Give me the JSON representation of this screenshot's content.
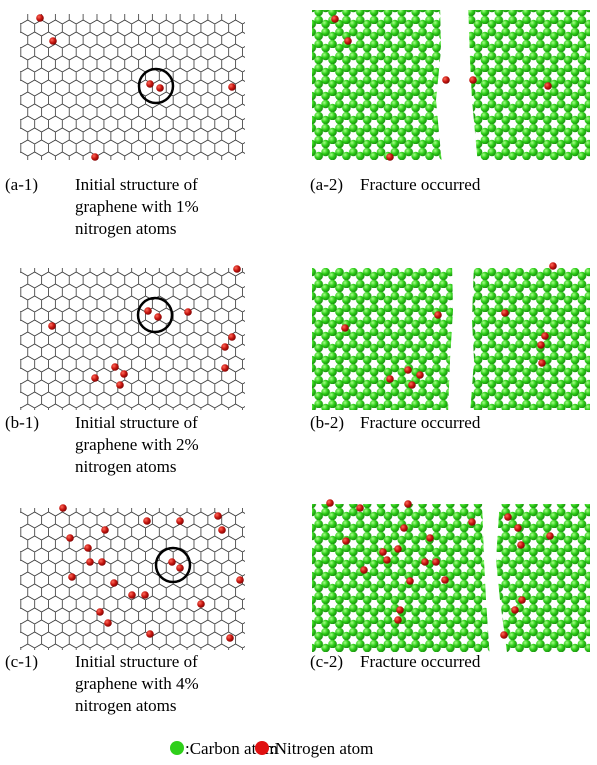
{
  "panels": [
    {
      "label": "(a-1)",
      "caption": [
        "Initial structure of",
        "graphene with 1%",
        "nitrogen atoms"
      ]
    },
    {
      "label": "(a-2)",
      "caption": [
        "Fracture occurred"
      ]
    },
    {
      "label": "(b-1)",
      "caption": [
        "Initial structure of",
        "graphene with 2%",
        "nitrogen atoms"
      ]
    },
    {
      "label": "(b-2)",
      "caption": [
        "Fracture occurred"
      ]
    },
    {
      "label": "(c-1)",
      "caption": [
        "Initial structure of",
        "graphene with 4%",
        "nitrogen atoms"
      ]
    },
    {
      "label": "(c-2)",
      "caption": [
        "Fracture occurred"
      ]
    }
  ],
  "legend": [
    {
      "label": ":Carbon atom"
    },
    {
      "label": ":Nitrogen atom"
    }
  ]
}
